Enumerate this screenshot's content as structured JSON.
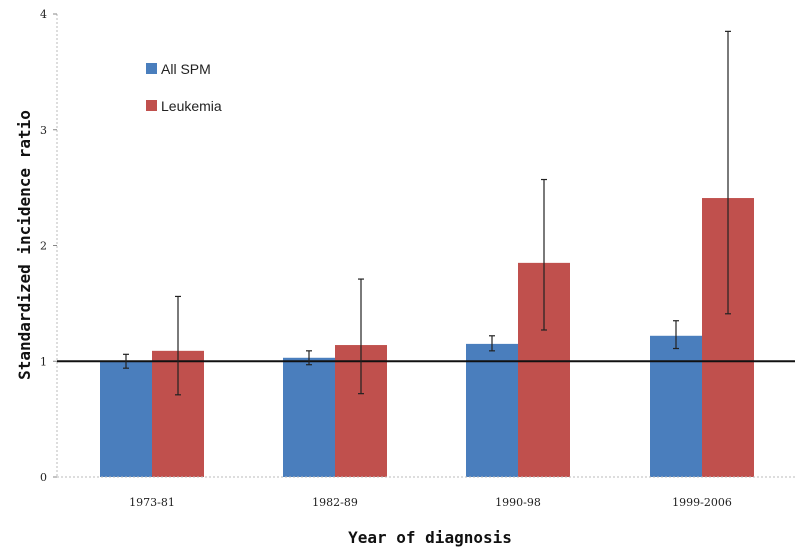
{
  "chart_data": {
    "type": "bar",
    "categories": [
      "1973-81",
      "1982-89",
      "1990-98",
      "1999-2006"
    ],
    "series": [
      {
        "name": "All SPM",
        "values": [
          1.0,
          1.03,
          1.15,
          1.22
        ],
        "error_low": [
          0.94,
          0.97,
          1.09,
          1.11
        ],
        "error_high": [
          1.06,
          1.09,
          1.22,
          1.35
        ],
        "color": "#4a7ebd"
      },
      {
        "name": "Leukemia",
        "values": [
          1.09,
          1.14,
          1.85,
          2.41
        ],
        "error_low": [
          0.71,
          0.72,
          1.27,
          1.41
        ],
        "error_high": [
          1.56,
          1.71,
          2.57,
          3.85
        ],
        "color": "#c0504d"
      }
    ],
    "reference_line": 1,
    "xlabel": "Year of diagnosis",
    "ylabel": "Standardized incidence ratio",
    "ylim": [
      0,
      4
    ],
    "yticks": [
      "0",
      "1",
      "2",
      "3",
      "4"
    ],
    "grid": false,
    "legend_position": "top-left"
  }
}
